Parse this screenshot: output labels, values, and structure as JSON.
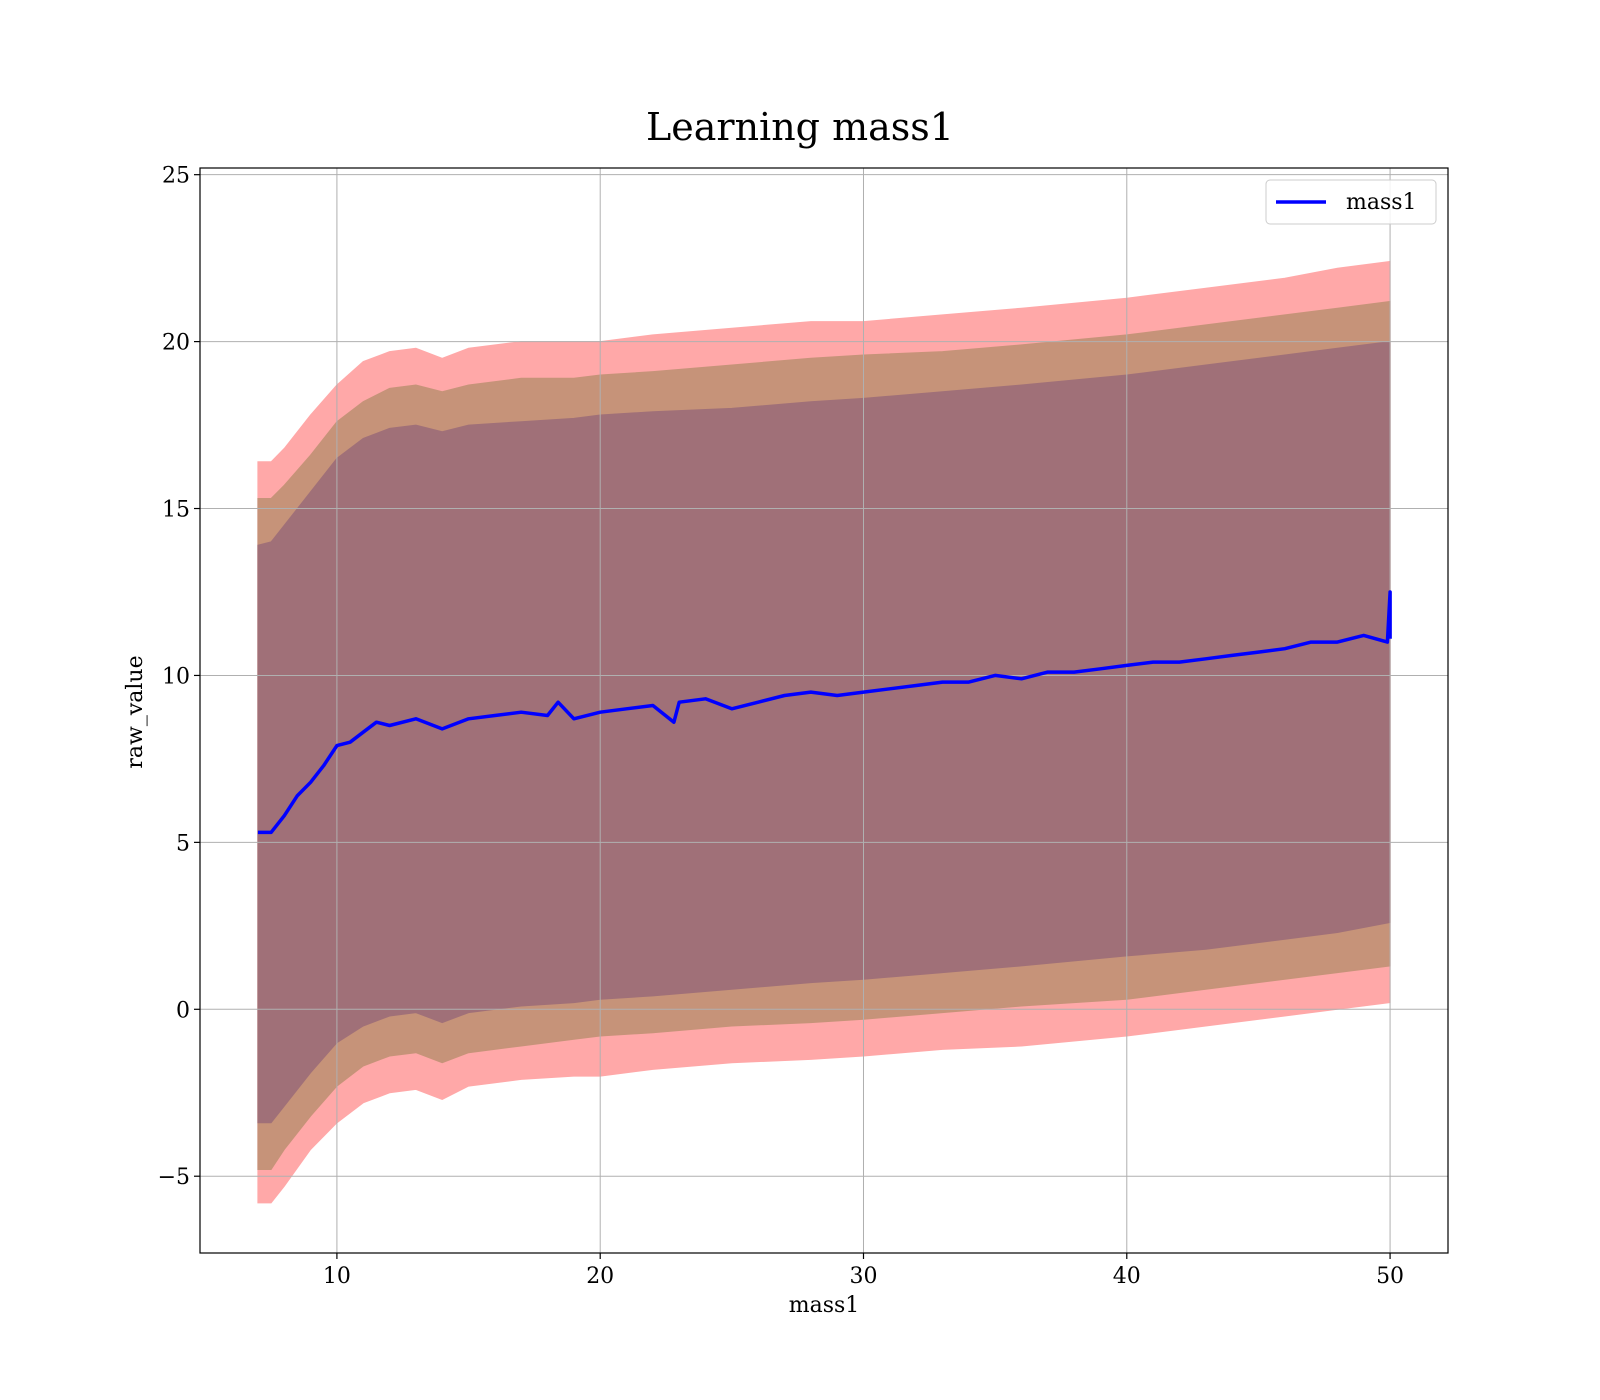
{
  "chart_data": {
    "type": "area",
    "title": "Learning mass1",
    "xlabel": "mass1",
    "ylabel": "raw_value",
    "xlim": [
      4.8,
      52.2
    ],
    "ylim": [
      -7.3,
      25.2
    ],
    "xticks": [
      10,
      20,
      30,
      40,
      50
    ],
    "yticks": [
      -5,
      0,
      5,
      10,
      15,
      20,
      25
    ],
    "xtick_labels": [
      "10",
      "20",
      "30",
      "40",
      "50"
    ],
    "ytick_labels": [
      "−5",
      "0",
      "5",
      "10",
      "15",
      "20",
      "25"
    ],
    "grid": true,
    "legend": {
      "position": "top-right",
      "entries": [
        "mass1"
      ]
    },
    "series": [
      {
        "name": "mass1",
        "role": "line",
        "color": "#0000ff",
        "x": [
          7.0,
          7.5,
          8.0,
          8.5,
          9.0,
          9.5,
          10.0,
          10.5,
          11.0,
          11.5,
          12.0,
          13.0,
          14.0,
          15.0,
          16.0,
          17.0,
          18.0,
          18.4,
          19.0,
          20.0,
          21.0,
          22.0,
          22.8,
          23.0,
          24.0,
          25.0,
          26.0,
          27.0,
          28.0,
          29.0,
          30.0,
          31.0,
          32.0,
          33.0,
          34.0,
          35.0,
          36.0,
          37.0,
          38.0,
          39.0,
          40.0,
          41.0,
          42.0,
          43.0,
          44.0,
          45.0,
          46.0,
          47.0,
          48.0,
          49.0,
          49.9,
          50.0,
          50.0
        ],
        "y": [
          5.3,
          5.3,
          5.8,
          6.4,
          6.8,
          7.3,
          7.9,
          8.0,
          8.3,
          8.6,
          8.5,
          8.7,
          8.4,
          8.7,
          8.8,
          8.9,
          8.8,
          9.2,
          8.7,
          8.9,
          9.0,
          9.1,
          8.6,
          9.2,
          9.3,
          9.0,
          9.2,
          9.4,
          9.5,
          9.4,
          9.5,
          9.6,
          9.7,
          9.8,
          9.8,
          10.0,
          9.9,
          10.1,
          10.1,
          10.2,
          10.3,
          10.4,
          10.4,
          10.5,
          10.6,
          10.7,
          10.8,
          11.0,
          11.0,
          11.2,
          11.0,
          12.5,
          11.1
        ]
      },
      {
        "name": "band outer",
        "role": "band",
        "color": "#ffa8a8",
        "x": [
          7.0,
          7.5,
          8.0,
          9.0,
          10.0,
          11.0,
          12.0,
          13.0,
          14.0,
          15.0,
          17.0,
          19.0,
          20.0,
          22.0,
          25.0,
          28.0,
          30.0,
          33.0,
          36.0,
          40.0,
          43.0,
          46.0,
          48.0,
          50.0
        ],
        "upper": [
          16.4,
          16.4,
          16.8,
          17.8,
          18.7,
          19.4,
          19.7,
          19.8,
          19.5,
          19.8,
          20.0,
          20.0,
          20.0,
          20.2,
          20.4,
          20.6,
          20.6,
          20.8,
          21.0,
          21.3,
          21.6,
          21.9,
          22.2,
          22.4
        ],
        "lower": [
          -5.8,
          -5.8,
          -5.3,
          -4.2,
          -3.4,
          -2.8,
          -2.5,
          -2.4,
          -2.7,
          -2.3,
          -2.1,
          -2.0,
          -2.0,
          -1.8,
          -1.6,
          -1.5,
          -1.4,
          -1.2,
          -1.1,
          -0.8,
          -0.5,
          -0.2,
          0.0,
          0.2
        ]
      },
      {
        "name": "band middle",
        "role": "band",
        "color": "#c69379",
        "x": [
          7.0,
          7.5,
          8.0,
          9.0,
          10.0,
          11.0,
          12.0,
          13.0,
          14.0,
          15.0,
          17.0,
          19.0,
          20.0,
          22.0,
          25.0,
          28.0,
          30.0,
          33.0,
          36.0,
          40.0,
          43.0,
          46.0,
          48.0,
          50.0
        ],
        "upper": [
          15.3,
          15.3,
          15.7,
          16.6,
          17.6,
          18.2,
          18.6,
          18.7,
          18.5,
          18.7,
          18.9,
          18.9,
          19.0,
          19.1,
          19.3,
          19.5,
          19.6,
          19.7,
          19.9,
          20.2,
          20.5,
          20.8,
          21.0,
          21.2
        ],
        "lower": [
          -4.8,
          -4.8,
          -4.2,
          -3.2,
          -2.3,
          -1.7,
          -1.4,
          -1.3,
          -1.6,
          -1.3,
          -1.1,
          -0.9,
          -0.8,
          -0.7,
          -0.5,
          -0.4,
          -0.3,
          -0.1,
          0.1,
          0.3,
          0.6,
          0.9,
          1.1,
          1.3
        ]
      },
      {
        "name": "band inner",
        "role": "band",
        "color": "#a07078",
        "x": [
          7.0,
          7.5,
          8.0,
          9.0,
          10.0,
          11.0,
          12.0,
          13.0,
          14.0,
          15.0,
          17.0,
          19.0,
          20.0,
          22.0,
          25.0,
          28.0,
          30.0,
          33.0,
          36.0,
          40.0,
          43.0,
          46.0,
          48.0,
          50.0
        ],
        "upper": [
          13.9,
          14.0,
          14.5,
          15.5,
          16.5,
          17.1,
          17.4,
          17.5,
          17.3,
          17.5,
          17.6,
          17.7,
          17.8,
          17.9,
          18.0,
          18.2,
          18.3,
          18.5,
          18.7,
          19.0,
          19.3,
          19.6,
          19.8,
          20.0
        ],
        "lower": [
          -3.4,
          -3.4,
          -2.9,
          -1.9,
          -1.0,
          -0.5,
          -0.2,
          -0.1,
          -0.4,
          -0.1,
          0.1,
          0.2,
          0.3,
          0.4,
          0.6,
          0.8,
          0.9,
          1.1,
          1.3,
          1.6,
          1.8,
          2.1,
          2.3,
          2.6
        ]
      }
    ]
  }
}
